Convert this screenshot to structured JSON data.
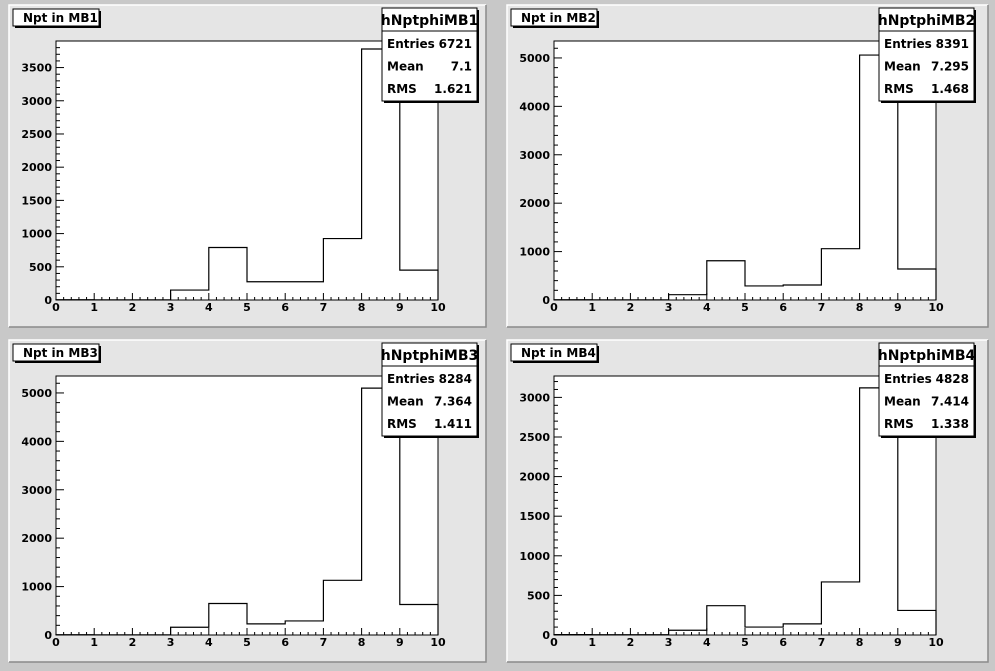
{
  "page": {
    "background": "#c8c8c8",
    "pad_background": "#e5e5e5",
    "frame_background": "#ffffff",
    "line_color": "#000000"
  },
  "chart_data": [
    {
      "type": "bar",
      "title": "Npt in MB1",
      "xlabel": "",
      "ylabel": "",
      "xlim": [
        0,
        10
      ],
      "ylim": [
        0,
        3900
      ],
      "x_ticks": [
        0,
        1,
        2,
        3,
        4,
        5,
        6,
        7,
        8,
        9,
        10
      ],
      "y_ticks": [
        0,
        500,
        1000,
        1500,
        2000,
        2500,
        3000,
        3500
      ],
      "bin_edges": [
        0,
        1,
        2,
        3,
        4,
        5,
        6,
        7,
        8,
        9,
        10
      ],
      "values": [
        5,
        3,
        3,
        150,
        790,
        275,
        275,
        925,
        3780,
        450
      ],
      "stats": {
        "name": "hNptphiMB1",
        "rows": [
          {
            "label": "Entries",
            "value": "6721"
          },
          {
            "label": "Mean",
            "value": "7.1"
          },
          {
            "label": "RMS",
            "value": "1.621"
          }
        ]
      }
    },
    {
      "type": "bar",
      "title": "Npt in MB2",
      "xlabel": "",
      "ylabel": "",
      "xlim": [
        0,
        10
      ],
      "ylim": [
        0,
        5350
      ],
      "x_ticks": [
        0,
        1,
        2,
        3,
        4,
        5,
        6,
        7,
        8,
        9,
        10
      ],
      "y_ticks": [
        0,
        1000,
        2000,
        3000,
        4000,
        5000
      ],
      "bin_edges": [
        0,
        1,
        2,
        3,
        4,
        5,
        6,
        7,
        8,
        9,
        10
      ],
      "values": [
        5,
        3,
        3,
        110,
        810,
        290,
        310,
        1060,
        5060,
        640
      ],
      "stats": {
        "name": "hNptphiMB2",
        "rows": [
          {
            "label": "Entries",
            "value": "8391"
          },
          {
            "label": "Mean",
            "value": "7.295"
          },
          {
            "label": "RMS",
            "value": "1.468"
          }
        ]
      }
    },
    {
      "type": "bar",
      "title": "Npt in MB3",
      "xlabel": "",
      "ylabel": "",
      "xlim": [
        0,
        10
      ],
      "ylim": [
        0,
        5350
      ],
      "x_ticks": [
        0,
        1,
        2,
        3,
        4,
        5,
        6,
        7,
        8,
        9,
        10
      ],
      "y_ticks": [
        0,
        1000,
        2000,
        3000,
        4000,
        5000
      ],
      "bin_edges": [
        0,
        1,
        2,
        3,
        4,
        5,
        6,
        7,
        8,
        9,
        10
      ],
      "values": [
        5,
        3,
        3,
        160,
        650,
        230,
        290,
        1130,
        5100,
        630
      ],
      "stats": {
        "name": "hNptphiMB3",
        "rows": [
          {
            "label": "Entries",
            "value": "8284"
          },
          {
            "label": "Mean",
            "value": "7.364"
          },
          {
            "label": "RMS",
            "value": "1.411"
          }
        ]
      }
    },
    {
      "type": "bar",
      "title": "Npt in MB4",
      "xlabel": "",
      "ylabel": "",
      "xlim": [
        0,
        10
      ],
      "ylim": [
        0,
        3270
      ],
      "x_ticks": [
        0,
        1,
        2,
        3,
        4,
        5,
        6,
        7,
        8,
        9,
        10
      ],
      "y_ticks": [
        0,
        500,
        1000,
        1500,
        2000,
        2500,
        3000
      ],
      "bin_edges": [
        0,
        1,
        2,
        3,
        4,
        5,
        6,
        7,
        8,
        9,
        10
      ],
      "values": [
        5,
        3,
        3,
        60,
        370,
        100,
        140,
        670,
        3120,
        310
      ],
      "stats": {
        "name": "hNptphiMB4",
        "rows": [
          {
            "label": "Entries",
            "value": "4828"
          },
          {
            "label": "Mean",
            "value": "7.414"
          },
          {
            "label": "RMS",
            "value": "1.338"
          }
        ]
      }
    }
  ]
}
